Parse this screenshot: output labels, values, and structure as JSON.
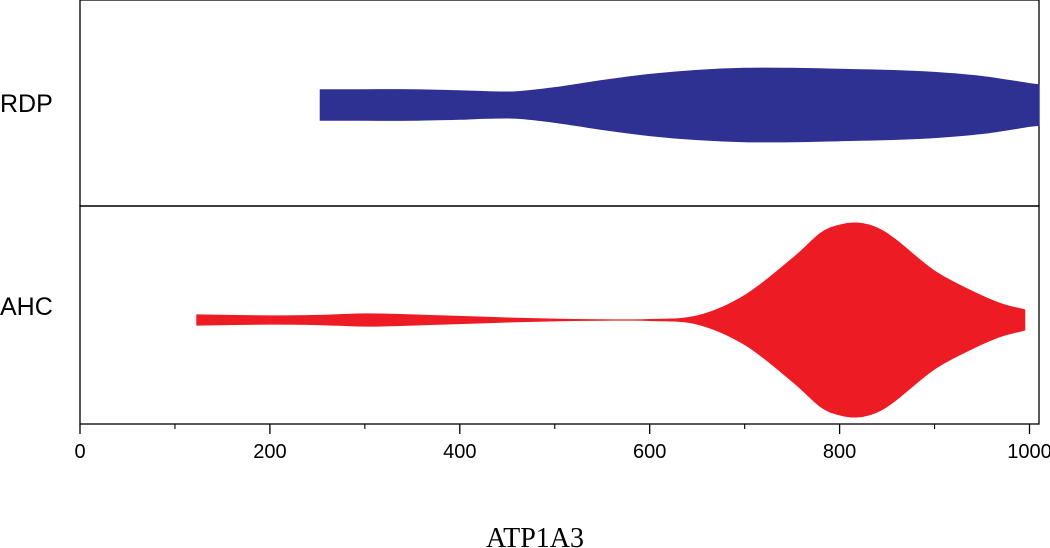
{
  "chart_data": {
    "type": "violin",
    "title": "",
    "xlabel": "ATP1A3",
    "ylabel": "",
    "xlim": [
      0,
      1010
    ],
    "x_ticks": [
      0,
      200,
      400,
      600,
      800,
      1000
    ],
    "x_minor_ticks": [
      100,
      300,
      500,
      700,
      900
    ],
    "grid": false,
    "legend": "none",
    "series": [
      {
        "name": "RDP",
        "color": "#2e3192",
        "profile": [
          [
            253,
            0.15
          ],
          [
            300,
            0.15
          ],
          [
            350,
            0.15
          ],
          [
            400,
            0.14
          ],
          [
            430,
            0.13
          ],
          [
            460,
            0.13
          ],
          [
            500,
            0.17
          ],
          [
            550,
            0.24
          ],
          [
            600,
            0.3
          ],
          [
            650,
            0.34
          ],
          [
            700,
            0.36
          ],
          [
            750,
            0.36
          ],
          [
            800,
            0.35
          ],
          [
            850,
            0.34
          ],
          [
            900,
            0.32
          ],
          [
            950,
            0.28
          ],
          [
            1000,
            0.21
          ],
          [
            1010,
            0.2
          ]
        ]
      },
      {
        "name": "AHC",
        "color": "#ed1c24",
        "profile": [
          [
            123,
            0.05
          ],
          [
            200,
            0.04
          ],
          [
            250,
            0.045
          ],
          [
            300,
            0.06
          ],
          [
            350,
            0.05
          ],
          [
            400,
            0.035
          ],
          [
            450,
            0.02
          ],
          [
            500,
            0.008
          ],
          [
            550,
            0.002
          ],
          [
            600,
            0.005
          ],
          [
            650,
            0.04
          ],
          [
            700,
            0.24
          ],
          [
            750,
            0.6
          ],
          [
            780,
            0.85
          ],
          [
            800,
            0.93
          ],
          [
            820,
            0.95
          ],
          [
            840,
            0.9
          ],
          [
            860,
            0.78
          ],
          [
            900,
            0.48
          ],
          [
            940,
            0.28
          ],
          [
            970,
            0.16
          ],
          [
            995,
            0.1
          ]
        ]
      }
    ]
  }
}
